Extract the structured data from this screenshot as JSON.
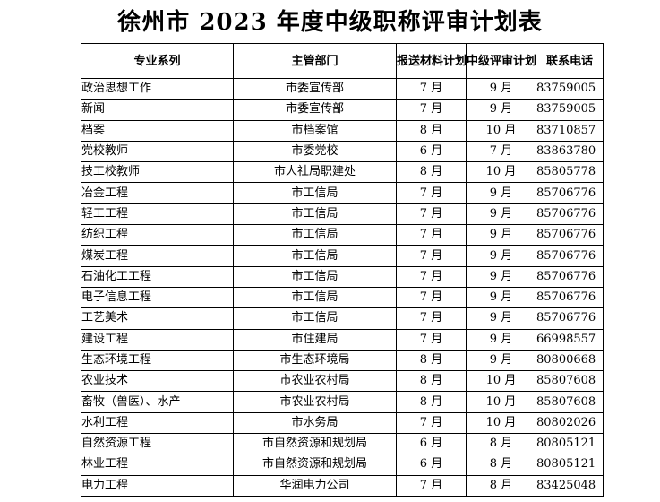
{
  "title": "徐州市 2023 年度中级职称评审计划表",
  "table": {
    "headers": {
      "specialty": "专业系列",
      "department": "主管部门",
      "submit_time": "报送材料计划时间",
      "review_time": "中级评审计划时间",
      "phone": "联系电话"
    },
    "rows": [
      {
        "specialty": "政治思想工作",
        "department": "市委宣传部",
        "submit": "7 月",
        "review": "9 月",
        "phone": "83759005"
      },
      {
        "specialty": "新闻",
        "department": "市委宣传部",
        "submit": "7 月",
        "review": "9 月",
        "phone": "83759005"
      },
      {
        "specialty": "档案",
        "department": "市档案馆",
        "submit": "8 月",
        "review": "10 月",
        "phone": "83710857"
      },
      {
        "specialty": "党校教师",
        "department": "市委党校",
        "submit": "6 月",
        "review": "7 月",
        "phone": "83863780"
      },
      {
        "specialty": "技工校教师",
        "department": "市人社局职建处",
        "submit": "8 月",
        "review": "10 月",
        "phone": "85805778"
      },
      {
        "specialty": "冶金工程",
        "department": "市工信局",
        "submit": "7 月",
        "review": "9 月",
        "phone": "85706776"
      },
      {
        "specialty": "轻工工程",
        "department": "市工信局",
        "submit": "7 月",
        "review": "9 月",
        "phone": "85706776"
      },
      {
        "specialty": "纺织工程",
        "department": "市工信局",
        "submit": "7 月",
        "review": "9 月",
        "phone": "85706776"
      },
      {
        "specialty": "煤炭工程",
        "department": "市工信局",
        "submit": "7 月",
        "review": "9 月",
        "phone": "85706776"
      },
      {
        "specialty": "石油化工工程",
        "department": "市工信局",
        "submit": "7 月",
        "review": "9 月",
        "phone": "85706776"
      },
      {
        "specialty": "电子信息工程",
        "department": "市工信局",
        "submit": "7 月",
        "review": "9 月",
        "phone": "85706776"
      },
      {
        "specialty": "工艺美术",
        "department": "市工信局",
        "submit": "7 月",
        "review": "9 月",
        "phone": "85706776"
      },
      {
        "specialty": "建设工程",
        "department": "市住建局",
        "submit": "7 月",
        "review": "9 月",
        "phone": "66998557"
      },
      {
        "specialty": "生态环境工程",
        "department": "市生态环境局",
        "submit": "8 月",
        "review": "9 月",
        "phone": "80800668"
      },
      {
        "specialty": "农业技术",
        "department": "市农业农村局",
        "submit": "8 月",
        "review": "10 月",
        "phone": "85807608"
      },
      {
        "specialty": "畜牧（兽医）、水产",
        "department": "市农业农村局",
        "submit": "8 月",
        "review": "10 月",
        "phone": "85807608"
      },
      {
        "specialty": "水利工程",
        "department": "市水务局",
        "submit": "7 月",
        "review": "10 月",
        "phone": "80802026"
      },
      {
        "specialty": "自然资源工程",
        "department": "市自然资源和规划局",
        "submit": "6 月",
        "review": "8 月",
        "phone": "80805121"
      },
      {
        "specialty": "林业工程",
        "department": "市自然资源和规划局",
        "submit": "6 月",
        "review": "8 月",
        "phone": "80805121"
      },
      {
        "specialty": "电力工程",
        "department": "华润电力公司",
        "submit": "7 月",
        "review": "8 月",
        "phone": "83425048"
      }
    ]
  }
}
